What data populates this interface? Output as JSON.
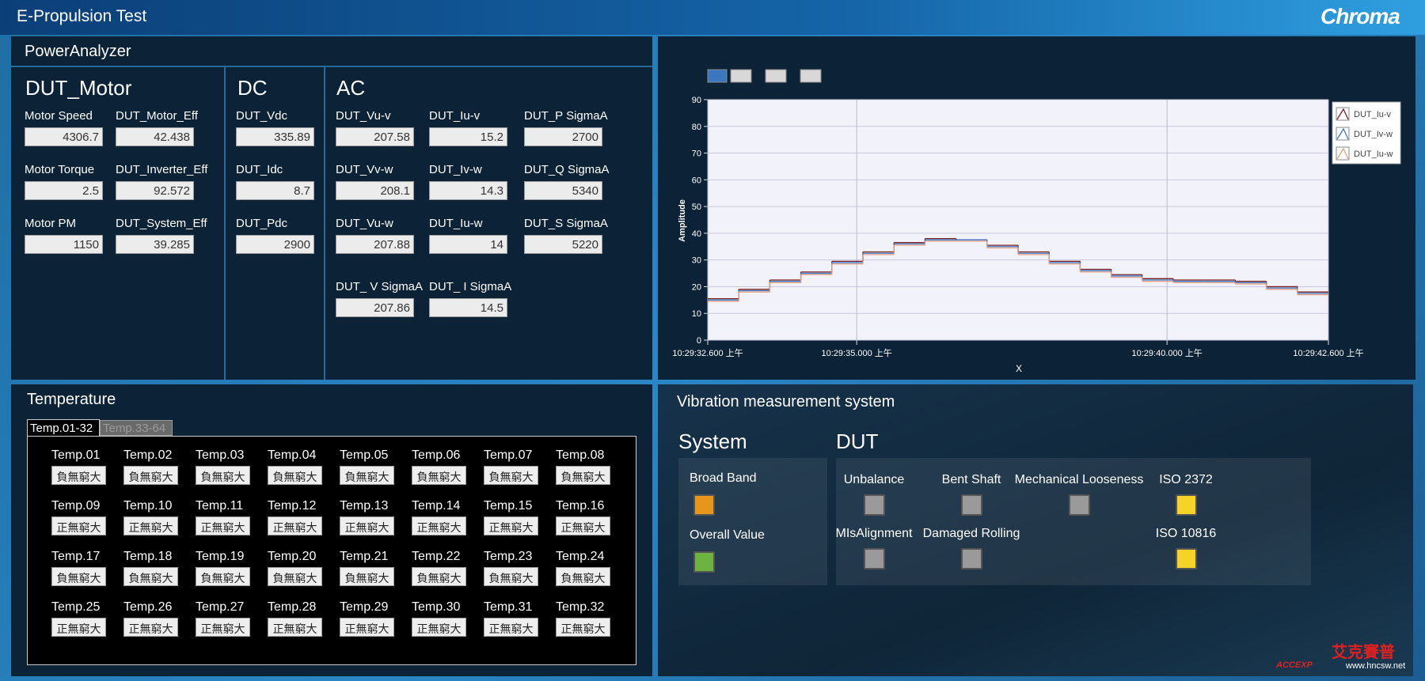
{
  "header": {
    "title": "E-Propulsion Test",
    "logo": "Chroma"
  },
  "power_analyzer": {
    "title": "PowerAnalyzer",
    "groups": [
      {
        "title": "DUT_Motor",
        "rows": [
          [
            {
              "label": "Motor Speed",
              "value": 4306.7
            },
            {
              "label": "DUT_Motor_Eff",
              "value": 42.438
            }
          ],
          [
            {
              "label": "Motor Torque",
              "value": 2.5
            },
            {
              "label": "DUT_Inverter_Eff",
              "value": 92.572
            }
          ],
          [
            {
              "label": "Motor PM",
              "value": 1150
            },
            {
              "label": "DUT_System_Eff",
              "value": 39.285
            }
          ]
        ]
      },
      {
        "title": "DC",
        "rows": [
          [
            {
              "label": "DUT_Vdc",
              "value": 335.89
            }
          ],
          [
            {
              "label": "DUT_Idc",
              "value": 8.7
            }
          ],
          [
            {
              "label": "DUT_Pdc",
              "value": 2900
            }
          ]
        ]
      },
      {
        "title": "AC",
        "rows": [
          [
            {
              "label": "DUT_Vu-v",
              "value": 207.58
            },
            {
              "label": "DUT_Iu-v",
              "value": 15.2
            },
            {
              "label": "DUT_P SigmaA",
              "value": 2700
            }
          ],
          [
            {
              "label": "DUT_Vv-w",
              "value": 208.1
            },
            {
              "label": "DUT_Iv-w",
              "value": 14.3
            },
            {
              "label": "DUT_Q SigmaA",
              "value": 5340
            }
          ],
          [
            {
              "label": "DUT_Vu-w",
              "value": 207.88
            },
            {
              "label": "DUT_Iu-w",
              "value": 14
            },
            {
              "label": "DUT_S SigmaA",
              "value": 5220
            }
          ],
          [
            {
              "label": "DUT_ V SigmaA",
              "value": 207.86
            },
            {
              "label": "DUT_ I SigmaA",
              "value": 14.5
            }
          ]
        ]
      }
    ]
  },
  "chart_data": {
    "type": "line",
    "ylabel": "Amplitude",
    "xlabel": "X",
    "x": [
      32.6,
      33.1,
      33.6,
      34.1,
      34.6,
      35.1,
      35.6,
      36.1,
      36.6,
      37.1,
      37.6,
      38.1,
      38.6,
      39.1,
      39.6,
      40.1,
      40.6,
      41.1,
      41.6,
      42.1
    ],
    "series": [
      {
        "name": "DUT_Iu-v",
        "color": "#7a1f1f",
        "values": [
          15.5,
          19,
          22.5,
          25.5,
          29.5,
          33,
          36.5,
          38,
          37.5,
          35.5,
          33,
          29.5,
          26.5,
          24.5,
          23,
          22.5,
          22.5,
          22,
          20,
          18
        ]
      },
      {
        "name": "DUT_Iv-w",
        "color": "#3a78c8",
        "values": [
          15,
          18.5,
          22,
          25,
          29,
          32.5,
          36,
          37.5,
          37.5,
          35,
          32.5,
          29,
          26,
          24,
          22.5,
          22,
          22,
          21.5,
          19.5,
          17.5
        ]
      },
      {
        "name": "DUT_Iu-w",
        "color": "#e8a080",
        "values": [
          14.5,
          18,
          21.5,
          24.5,
          28.5,
          32,
          35.5,
          37,
          37,
          34.5,
          32,
          28.5,
          25.5,
          23.5,
          22,
          21.5,
          21.5,
          21,
          19,
          17
        ]
      }
    ],
    "xlim": [
      32.6,
      42.6
    ],
    "xticks": [
      {
        "value": 32.6,
        "label": "10:29:32.600 上午"
      },
      {
        "value": 35,
        "label": "10:29:35.000 上午"
      },
      {
        "value": 40,
        "label": "10:29:40.000 上午"
      },
      {
        "value": 42.6,
        "label": "10:29:42.600 上午"
      }
    ],
    "ylim": [
      0,
      90
    ],
    "yticks": [
      0,
      10,
      20,
      30,
      40,
      50,
      60,
      70,
      80,
      90
    ],
    "grid": true,
    "legend": "right"
  },
  "temperature": {
    "title": "Temperature",
    "tabs": [
      "Temp.01-32",
      "Temp.33-64"
    ],
    "sensors": [
      {
        "label": "Temp.01",
        "value": "負無窮大"
      },
      {
        "label": "Temp.02",
        "value": "負無窮大"
      },
      {
        "label": "Temp.03",
        "value": "負無窮大"
      },
      {
        "label": "Temp.04",
        "value": "負無窮大"
      },
      {
        "label": "Temp.05",
        "value": "負無窮大"
      },
      {
        "label": "Temp.06",
        "value": "負無窮大"
      },
      {
        "label": "Temp.07",
        "value": "負無窮大"
      },
      {
        "label": "Temp.08",
        "value": "負無窮大"
      },
      {
        "label": "Temp.09",
        "value": "正無窮大"
      },
      {
        "label": "Temp.10",
        "value": "正無窮大"
      },
      {
        "label": "Temp.11",
        "value": "正無窮大"
      },
      {
        "label": "Temp.12",
        "value": "正無窮大"
      },
      {
        "label": "Temp.13",
        "value": "正無窮大"
      },
      {
        "label": "Temp.14",
        "value": "正無窮大"
      },
      {
        "label": "Temp.15",
        "value": "正無窮大"
      },
      {
        "label": "Temp.16",
        "value": "正無窮大"
      },
      {
        "label": "Temp.17",
        "value": "負無窮大"
      },
      {
        "label": "Temp.18",
        "value": "負無窮大"
      },
      {
        "label": "Temp.19",
        "value": "負無窮大"
      },
      {
        "label": "Temp.20",
        "value": "負無窮大"
      },
      {
        "label": "Temp.21",
        "value": "負無窮大"
      },
      {
        "label": "Temp.22",
        "value": "負無窮大"
      },
      {
        "label": "Temp.23",
        "value": "負無窮大"
      },
      {
        "label": "Temp.24",
        "value": "負無窮大"
      },
      {
        "label": "Temp.25",
        "value": "正無窮大"
      },
      {
        "label": "Temp.26",
        "value": "正無窮大"
      },
      {
        "label": "Temp.27",
        "value": "正無窮大"
      },
      {
        "label": "Temp.28",
        "value": "正無窮大"
      },
      {
        "label": "Temp.29",
        "value": "正無窮大"
      },
      {
        "label": "Temp.30",
        "value": "正無窮大"
      },
      {
        "label": "Temp.31",
        "value": "正無窮大"
      },
      {
        "label": "Temp.32",
        "value": "正無窮大"
      }
    ]
  },
  "vibration": {
    "title": "Vibration measurement system",
    "system": {
      "title": "System",
      "items": [
        {
          "label": "Broad Band",
          "color": "#e8951c"
        },
        {
          "label": "Overall Value",
          "color": "#6db33f"
        }
      ]
    },
    "dut": {
      "title": "DUT",
      "rows": [
        [
          {
            "label": "Unbalance",
            "color": "#9a9a9a"
          },
          {
            "label": "Bent Shaft",
            "color": "#9a9a9a"
          },
          {
            "label": "Mechanical Looseness",
            "color": "#9a9a9a"
          },
          {
            "label": "ISO 2372",
            "color": "#f5d327"
          }
        ],
        [
          {
            "label": "MIsAlignment",
            "color": "#9a9a9a"
          },
          {
            "label": "Damaged Rolling",
            "color": "#9a9a9a"
          },
          {
            "label": "ISO 10816",
            "color": "#f5d327"
          }
        ]
      ]
    }
  },
  "watermark": {
    "name": "艾克賽普",
    "brand": "ACCEXP",
    "url": "www.hncsw.net"
  }
}
